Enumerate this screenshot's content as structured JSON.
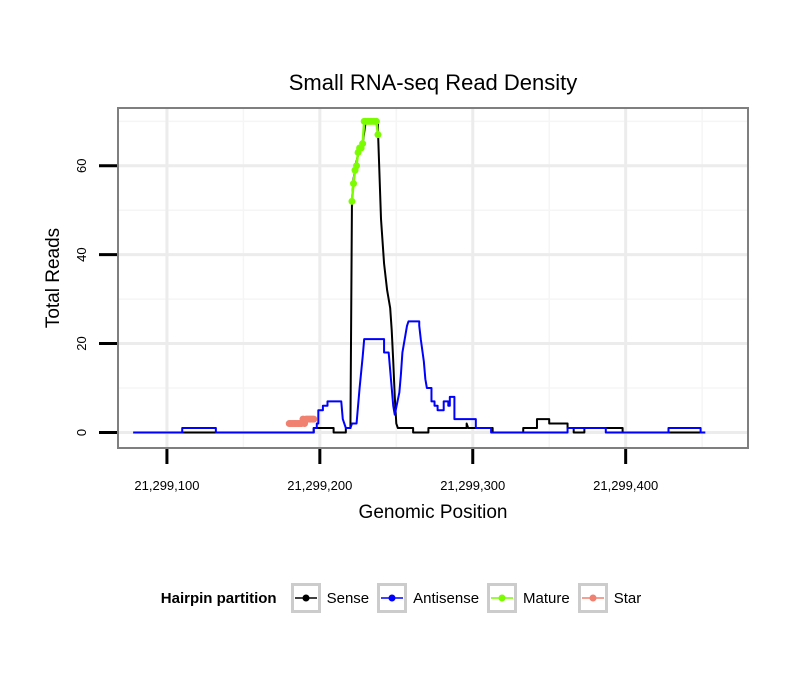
{
  "chart_data": {
    "type": "line",
    "title": "Small RNA-seq Read Density",
    "xlabel": "Genomic Position",
    "ylabel": "Total Reads",
    "xlim": [
      21299068,
      21299480
    ],
    "ylim": [
      -3.5,
      73
    ],
    "x_ticks": [
      21299100,
      21299200,
      21299300,
      21299400
    ],
    "x_tick_labels": [
      "21,299,100",
      "21,299,200",
      "21,299,300",
      "21,299,400"
    ],
    "y_ticks": [
      0,
      20,
      40,
      60
    ],
    "y_tick_labels": [
      "0",
      "20",
      "40",
      "60"
    ],
    "grid": true,
    "legend_position": "bottom",
    "legend_title": "Hairpin partition",
    "series": [
      {
        "name": "Sense",
        "color": "#000000",
        "markers": false,
        "points": [
          [
            21299078,
            0
          ],
          [
            21299196,
            0
          ],
          [
            21299196,
            1
          ],
          [
            21299209,
            1
          ],
          [
            21299209,
            0
          ],
          [
            21299217,
            0
          ],
          [
            21299217,
            1
          ],
          [
            21299220,
            1
          ],
          [
            21299221,
            52
          ],
          [
            21299222,
            57
          ],
          [
            21299224,
            61
          ],
          [
            21299226,
            64
          ],
          [
            21299228,
            65
          ],
          [
            21299230,
            70
          ],
          [
            21299238,
            70
          ],
          [
            21299238,
            68
          ],
          [
            21299240,
            48
          ],
          [
            21299242,
            38
          ],
          [
            21299244,
            32
          ],
          [
            21299246,
            28
          ],
          [
            21299247,
            23
          ],
          [
            21299248,
            16
          ],
          [
            21299249,
            8
          ],
          [
            21299250,
            2
          ],
          [
            21299251,
            1
          ],
          [
            21299261,
            1
          ],
          [
            21299261,
            0
          ],
          [
            21299271,
            0
          ],
          [
            21299271,
            1
          ],
          [
            21299296,
            1
          ],
          [
            21299296,
            2
          ],
          [
            21299297,
            1
          ],
          [
            21299313,
            1
          ],
          [
            21299313,
            0
          ],
          [
            21299333,
            0
          ],
          [
            21299333,
            1
          ],
          [
            21299342,
            1
          ],
          [
            21299342,
            3
          ],
          [
            21299350,
            3
          ],
          [
            21299350,
            2
          ],
          [
            21299362,
            2
          ],
          [
            21299362,
            1
          ],
          [
            21299366,
            1
          ],
          [
            21299366,
            0
          ],
          [
            21299373,
            0
          ],
          [
            21299373,
            1
          ],
          [
            21299398,
            1
          ],
          [
            21299398,
            0
          ],
          [
            21299452,
            0
          ]
        ]
      },
      {
        "name": "Antisense",
        "color": "#0000ff",
        "markers": false,
        "points": [
          [
            21299078,
            0
          ],
          [
            21299110,
            0
          ],
          [
            21299110,
            1
          ],
          [
            21299132,
            1
          ],
          [
            21299132,
            0
          ],
          [
            21299196,
            0
          ],
          [
            21299196,
            1
          ],
          [
            21299198,
            1
          ],
          [
            21299198,
            2
          ],
          [
            21299199,
            2
          ],
          [
            21299199,
            5
          ],
          [
            21299202,
            5
          ],
          [
            21299202,
            6
          ],
          [
            21299205,
            6
          ],
          [
            21299205,
            7
          ],
          [
            21299214,
            7
          ],
          [
            21299215,
            3
          ],
          [
            21299217,
            1
          ],
          [
            21299220,
            1
          ],
          [
            21299221,
            2
          ],
          [
            21299224,
            2
          ],
          [
            21299226,
            10
          ],
          [
            21299228,
            17
          ],
          [
            21299229,
            21
          ],
          [
            21299242,
            21
          ],
          [
            21299242,
            18
          ],
          [
            21299245,
            18
          ],
          [
            21299246,
            14
          ],
          [
            21299247,
            10
          ],
          [
            21299248,
            6
          ],
          [
            21299249,
            4
          ],
          [
            21299252,
            9
          ],
          [
            21299253,
            13
          ],
          [
            21299254,
            18
          ],
          [
            21299256,
            22
          ],
          [
            21299257,
            24
          ],
          [
            21299258,
            25
          ],
          [
            21299265,
            25
          ],
          [
            21299265,
            24
          ],
          [
            21299266,
            21
          ],
          [
            21299268,
            16
          ],
          [
            21299269,
            12
          ],
          [
            21299270,
            10
          ],
          [
            21299273,
            10
          ],
          [
            21299273,
            7
          ],
          [
            21299275,
            7
          ],
          [
            21299275,
            6
          ],
          [
            21299277,
            6
          ],
          [
            21299277,
            5
          ],
          [
            21299281,
            5
          ],
          [
            21299281,
            7
          ],
          [
            21299284,
            7
          ],
          [
            21299284,
            6
          ],
          [
            21299285,
            6
          ],
          [
            21299285,
            8
          ],
          [
            21299288,
            8
          ],
          [
            21299288,
            3
          ],
          [
            21299302,
            3
          ],
          [
            21299302,
            1
          ],
          [
            21299312,
            1
          ],
          [
            21299312,
            0
          ],
          [
            21299362,
            0
          ],
          [
            21299362,
            1
          ],
          [
            21299387,
            1
          ],
          [
            21299387,
            0
          ],
          [
            21299428,
            0
          ],
          [
            21299428,
            1
          ],
          [
            21299449,
            1
          ],
          [
            21299449,
            0
          ],
          [
            21299452,
            0
          ]
        ]
      },
      {
        "name": "Mature",
        "color": "#7cfc00",
        "markers": true,
        "points": [
          [
            21299221,
            52
          ],
          [
            21299222,
            56
          ],
          [
            21299223,
            59
          ],
          [
            21299224,
            60
          ],
          [
            21299225,
            63
          ],
          [
            21299226,
            64
          ],
          [
            21299227,
            64
          ],
          [
            21299228,
            65
          ],
          [
            21299229,
            70
          ],
          [
            21299230,
            70
          ],
          [
            21299231,
            70
          ],
          [
            21299232,
            70
          ],
          [
            21299233,
            70
          ],
          [
            21299234,
            70
          ],
          [
            21299235,
            70
          ],
          [
            21299236,
            70
          ],
          [
            21299237,
            70
          ],
          [
            21299238,
            67
          ]
        ]
      },
      {
        "name": "Star",
        "color": "#f08070",
        "markers": true,
        "points": [
          [
            21299180,
            2
          ],
          [
            21299181,
            2
          ],
          [
            21299182,
            2
          ],
          [
            21299183,
            2
          ],
          [
            21299184,
            2
          ],
          [
            21299185,
            2
          ],
          [
            21299186,
            2
          ],
          [
            21299187,
            2
          ],
          [
            21299188,
            2
          ],
          [
            21299189,
            3
          ],
          [
            21299190,
            2
          ],
          [
            21299191,
            3
          ],
          [
            21299192,
            3
          ],
          [
            21299193,
            3
          ],
          [
            21299194,
            3
          ],
          [
            21299195,
            3
          ],
          [
            21299196,
            3
          ]
        ]
      }
    ]
  }
}
